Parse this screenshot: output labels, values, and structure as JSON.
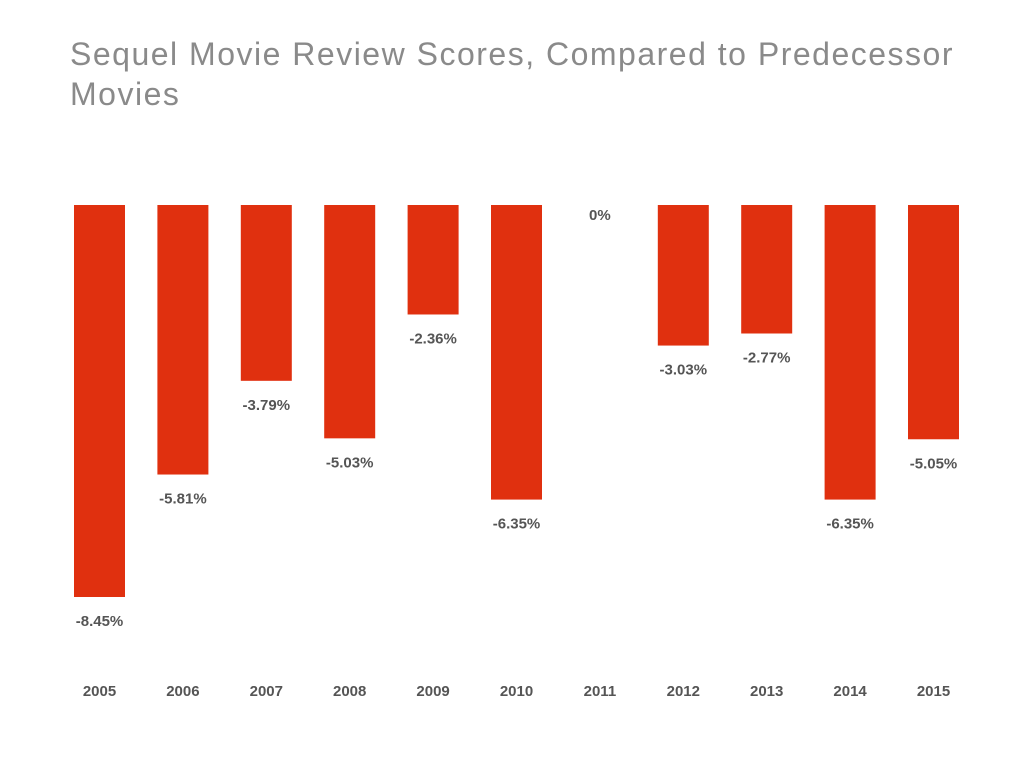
{
  "chart_data": {
    "type": "bar",
    "title": "Sequel Movie Review Scores, Compared to Predecessor Movies",
    "categories": [
      "2005",
      "2006",
      "2007",
      "2008",
      "2009",
      "2010",
      "2011",
      "2012",
      "2013",
      "2014",
      "2015"
    ],
    "values": [
      -8.45,
      -5.81,
      -3.79,
      -5.03,
      -2.36,
      -6.35,
      0,
      -3.03,
      -2.77,
      -6.35,
      -5.05
    ],
    "value_labels": [
      "-8.45%",
      "-5.81%",
      "-3.79%",
      "-5.03%",
      "-2.36%",
      "-6.35%",
      "0%",
      "-3.03%",
      "-2.77%",
      "-6.35%",
      "-5.05%"
    ],
    "xlabel": "",
    "ylabel": "",
    "ylim": [
      -8.45,
      0
    ],
    "grid": false,
    "bar_color": "#e0300f"
  }
}
